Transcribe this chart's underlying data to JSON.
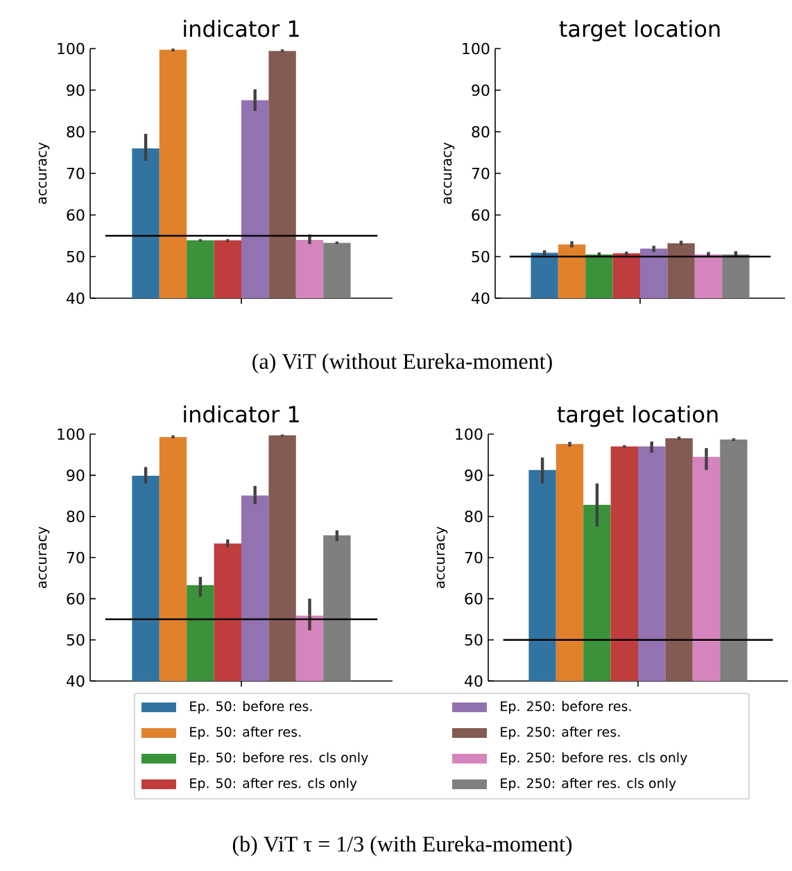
{
  "chart_data": [
    {
      "type": "bar",
      "title": "indicator 1",
      "ylabel": "accuracy",
      "categories": [
        null
      ],
      "ylim": [
        40,
        100
      ],
      "yticks": [
        40,
        50,
        60,
        70,
        80,
        90,
        100
      ],
      "ref_lines": [
        {
          "axis": "y",
          "value": 55,
          "color": "#000000"
        }
      ],
      "annotations": [
        "(a) ViT (without Eureka-moment)"
      ],
      "series": [
        {
          "color": "#3274a1",
          "values": [
            76
          ],
          "errors": [
            [
              73,
              79.5
            ]
          ]
        },
        {
          "color": "#e1812c",
          "values": [
            99.7
          ],
          "errors": [
            [
              99.3,
              100
            ]
          ]
        },
        {
          "color": "#3a923a",
          "values": [
            53.9
          ],
          "errors": [
            [
              53.6,
              54.2
            ]
          ]
        },
        {
          "color": "#c03d3e",
          "values": [
            53.9
          ],
          "errors": [
            [
              53.5,
              54.2
            ]
          ]
        },
        {
          "color": "#9372b2",
          "values": [
            87.6
          ],
          "errors": [
            [
              85,
              90.2
            ]
          ]
        },
        {
          "color": "#845b53",
          "values": [
            99.4
          ],
          "errors": [
            [
              99.1,
              99.8
            ]
          ]
        },
        {
          "color": "#d684bd",
          "values": [
            54
          ],
          "errors": [
            [
              53,
              55.3
            ]
          ]
        },
        {
          "color": "#7f7f7f",
          "values": [
            53.3
          ],
          "errors": [
            [
              53,
              53.6
            ]
          ]
        }
      ]
    },
    {
      "type": "bar",
      "title": "target location",
      "ylabel": "accuracy",
      "categories": [
        null
      ],
      "ylim": [
        40,
        100
      ],
      "yticks": [
        40,
        50,
        60,
        70,
        80,
        90,
        100
      ],
      "ref_lines": [
        {
          "axis": "y",
          "value": 50,
          "color": "#000000"
        }
      ],
      "series": [
        {
          "color": "#3274a1",
          "values": [
            50.9
          ],
          "errors": [
            [
              50.3,
              51.5
            ]
          ]
        },
        {
          "color": "#e1812c",
          "values": [
            52.9
          ],
          "errors": [
            [
              52.2,
              53.7
            ]
          ]
        },
        {
          "color": "#3a923a",
          "values": [
            50.5
          ],
          "errors": [
            [
              50.1,
              51
            ]
          ]
        },
        {
          "color": "#c03d3e",
          "values": [
            50.8
          ],
          "errors": [
            [
              50.3,
              51.2
            ]
          ]
        },
        {
          "color": "#9372b2",
          "values": [
            51.9
          ],
          "errors": [
            [
              51.1,
              52.6
            ]
          ]
        },
        {
          "color": "#845b53",
          "values": [
            53.2
          ],
          "errors": [
            [
              52.7,
              53.8
            ]
          ]
        },
        {
          "color": "#d684bd",
          "values": [
            50.5
          ],
          "errors": [
            [
              49.9,
              51.1
            ]
          ]
        },
        {
          "color": "#7f7f7f",
          "values": [
            50.5
          ],
          "errors": [
            [
              49.8,
              51.3
            ]
          ]
        }
      ]
    },
    {
      "type": "bar",
      "title": "indicator 1",
      "ylabel": "accuracy",
      "categories": [
        null
      ],
      "ylim": [
        40,
        100
      ],
      "yticks": [
        40,
        50,
        60,
        70,
        80,
        90,
        100
      ],
      "ref_lines": [
        {
          "axis": "y",
          "value": 55,
          "color": "#000000"
        }
      ],
      "legend": "bottom",
      "annotations": [
        "(b) ViT τ = 1/3 (with Eureka-moment)"
      ],
      "series": [
        {
          "name": "Ep. 50: before res.",
          "color": "#3274a1",
          "values": [
            89.9
          ],
          "errors": [
            [
              88,
              92
            ]
          ]
        },
        {
          "name": "Ep. 50: after res.",
          "color": "#e1812c",
          "values": [
            99.3
          ],
          "errors": [
            [
              99,
              99.7
            ]
          ]
        },
        {
          "name": "Ep. 50: before res. cls only",
          "color": "#3a923a",
          "values": [
            63.3
          ],
          "errors": [
            [
              60.5,
              65.3
            ]
          ]
        },
        {
          "name": "Ep. 50: after res. cls only",
          "color": "#c03d3e",
          "values": [
            73.4
          ],
          "errors": [
            [
              72.5,
              74.4
            ]
          ]
        },
        {
          "name": "Ep. 250: before res.",
          "color": "#9372b2",
          "values": [
            85.1
          ],
          "errors": [
            [
              83,
              87.4
            ]
          ]
        },
        {
          "name": "Ep. 250: after res.",
          "color": "#845b53",
          "values": [
            99.7
          ],
          "errors": [
            [
              99.4,
              99.9
            ]
          ]
        },
        {
          "name": "Ep. 250: before res. cls only",
          "color": "#d684bd",
          "values": [
            55.9
          ],
          "errors": [
            [
              52.3,
              60
            ]
          ]
        },
        {
          "name": "Ep. 250: after res. cls only",
          "color": "#7f7f7f",
          "values": [
            75.4
          ],
          "errors": [
            [
              74,
              76.6
            ]
          ]
        }
      ]
    },
    {
      "type": "bar",
      "title": "target location",
      "ylabel": "accuracy",
      "categories": [
        null
      ],
      "ylim": [
        40,
        100
      ],
      "yticks": [
        40,
        50,
        60,
        70,
        80,
        90,
        100
      ],
      "ref_lines": [
        {
          "axis": "y",
          "value": 50,
          "color": "#000000"
        }
      ],
      "series": [
        {
          "color": "#3274a1",
          "values": [
            91.3
          ],
          "errors": [
            [
              88,
              94.3
            ]
          ]
        },
        {
          "color": "#e1812c",
          "values": [
            97.6
          ],
          "errors": [
            [
              97,
              98.1
            ]
          ]
        },
        {
          "color": "#3a923a",
          "values": [
            82.8
          ],
          "errors": [
            [
              77.5,
              88
            ]
          ]
        },
        {
          "color": "#c03d3e",
          "values": [
            97
          ],
          "errors": [
            [
              96.6,
              97.3
            ]
          ]
        },
        {
          "color": "#9372b2",
          "values": [
            97
          ],
          "errors": [
            [
              95.5,
              98.2
            ]
          ]
        },
        {
          "color": "#845b53",
          "values": [
            99
          ],
          "errors": [
            [
              98.7,
              99.4
            ]
          ]
        },
        {
          "color": "#d684bd",
          "values": [
            94.5
          ],
          "errors": [
            [
              91.3,
              96.6
            ]
          ]
        },
        {
          "color": "#7f7f7f",
          "values": [
            98.7
          ],
          "errors": [
            [
              98.3,
              99
            ]
          ]
        }
      ]
    }
  ]
}
